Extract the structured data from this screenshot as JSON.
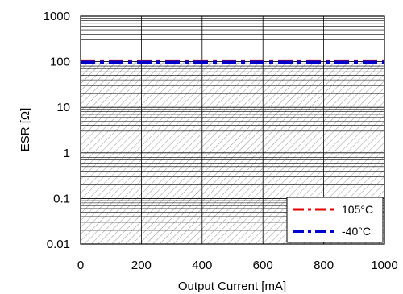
{
  "chart_data": {
    "type": "line",
    "xlabel": "Output Current [mA]",
    "ylabel": "ESR [Ω]",
    "xlim": [
      0,
      1000
    ],
    "ylim": [
      0.01,
      1000
    ],
    "yscale": "log",
    "x_ticks": [
      0,
      200,
      400,
      600,
      800,
      1000
    ],
    "x_tick_labels": [
      "0",
      "200",
      "400",
      "600",
      "800",
      "1000"
    ],
    "y_ticks": [
      1000,
      100,
      10,
      1,
      0.1,
      0.01
    ],
    "y_tick_labels": [
      "1000",
      "100",
      "10",
      "1",
      "0.1",
      "0.01"
    ],
    "grid": true,
    "legend_position": "bottom-right",
    "shaded_region": {
      "y_range": [
        0.01,
        100
      ],
      "pattern": "hatched"
    },
    "series": [
      {
        "name": "105°C",
        "x": [
          0,
          1000
        ],
        "y": [
          100,
          100
        ],
        "color": "#e00000",
        "style": "dash-dot"
      },
      {
        "name": "-40°C",
        "x": [
          0,
          1000
        ],
        "y": [
          100,
          100
        ],
        "color": "#0000cc",
        "style": "dash-dot"
      }
    ]
  }
}
